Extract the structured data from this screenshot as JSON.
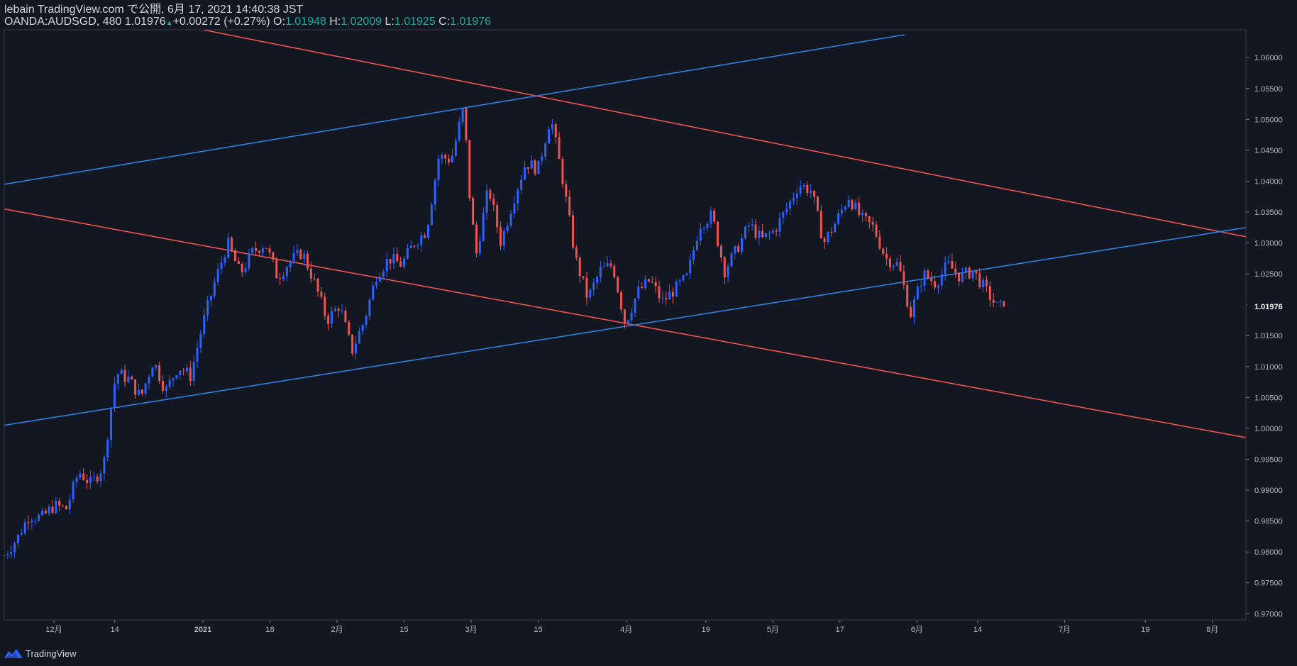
{
  "header": {
    "line1": "lebain TradingView.com で公開, 6月 17, 2021 14:40:38 JST",
    "symbol": "OANDA:AUDSGD, 480",
    "last": "1.01976",
    "change": "+0.00272 (+0.27%)",
    "o_label": "O:",
    "o_value": "1.01948",
    "h_label": "H:",
    "h_value": "1.02009",
    "l_label": "L:",
    "l_value": "1.01925",
    "c_label": "C:",
    "c_value": "1.01976"
  },
  "footer": {
    "brand": "TradingView"
  },
  "colors": {
    "background": "#131722",
    "up": "#2962ff",
    "down": "#ef5350",
    "blue_line": "#2f7fe0",
    "red_line": "#f0524f",
    "text": "#d1d4dc",
    "green": "#26a69a"
  },
  "chart_data": {
    "type": "candlestick",
    "symbol": "OANDA:AUDSGD",
    "interval": "480",
    "current_price": 1.01976,
    "ylim": [
      0.969,
      1.0645
    ],
    "y_ticks": [
      "1.06000",
      "1.05500",
      "1.05000",
      "1.04500",
      "1.04000",
      "1.03500",
      "1.03000",
      "1.02500",
      "1.02000",
      "1.01500",
      "1.01000",
      "1.00500",
      "1.00000",
      "0.99500",
      "0.99000",
      "0.98500",
      "0.98000",
      "0.97500",
      "0.97000"
    ],
    "x_ticks": [
      {
        "label": "12月",
        "t": 0.04
      },
      {
        "label": "14",
        "t": 0.089
      },
      {
        "label": "2021",
        "t": 0.16
      },
      {
        "label": "18",
        "t": 0.214
      },
      {
        "label": "2月",
        "t": 0.268
      },
      {
        "label": "15",
        "t": 0.322
      },
      {
        "label": "3月",
        "t": 0.376
      },
      {
        "label": "15",
        "t": 0.43
      },
      {
        "label": "4月",
        "t": 0.501
      },
      {
        "label": "19",
        "t": 0.565
      },
      {
        "label": "5月",
        "t": 0.619
      },
      {
        "label": "17",
        "t": 0.673
      },
      {
        "label": "6月",
        "t": 0.735
      },
      {
        "label": "14",
        "t": 0.784
      },
      {
        "label": "7月",
        "t": 0.854
      },
      {
        "label": "19",
        "t": 0.919
      },
      {
        "label": "8月",
        "t": 0.973
      }
    ],
    "series": [
      {
        "name": "close_path",
        "points": [
          [
            0.0,
            0.9795
          ],
          [
            0.01,
            0.982
          ],
          [
            0.02,
            0.986
          ],
          [
            0.03,
            0.9855
          ],
          [
            0.04,
            0.9875
          ],
          [
            0.05,
            0.987
          ],
          [
            0.06,
            0.993
          ],
          [
            0.07,
            0.991
          ],
          [
            0.08,
            0.994
          ],
          [
            0.085,
            1.002
          ],
          [
            0.09,
            1.009
          ],
          [
            0.1,
            1.008
          ],
          [
            0.11,
            1.005
          ],
          [
            0.12,
            1.011
          ],
          [
            0.13,
            1.006
          ],
          [
            0.14,
            1.01
          ],
          [
            0.15,
            1.0085
          ],
          [
            0.16,
            1.017
          ],
          [
            0.17,
            1.024
          ],
          [
            0.18,
            1.03
          ],
          [
            0.19,
            1.025
          ],
          [
            0.2,
            1.0285
          ],
          [
            0.21,
            1.03
          ],
          [
            0.22,
            1.0245
          ],
          [
            0.23,
            1.027
          ],
          [
            0.24,
            1.0285
          ],
          [
            0.25,
            1.0235
          ],
          [
            0.26,
            1.0175
          ],
          [
            0.27,
            1.02
          ],
          [
            0.28,
            1.0125
          ],
          [
            0.29,
            1.0175
          ],
          [
            0.3,
            1.025
          ],
          [
            0.31,
            1.0275
          ],
          [
            0.32,
            1.0265
          ],
          [
            0.33,
            1.03
          ],
          [
            0.34,
            1.032
          ],
          [
            0.35,
            1.044
          ],
          [
            0.36,
            1.0435
          ],
          [
            0.37,
            1.052
          ],
          [
            0.375,
            1.037
          ],
          [
            0.38,
            1.028
          ],
          [
            0.39,
            1.039
          ],
          [
            0.4,
            1.03
          ],
          [
            0.41,
            1.037
          ],
          [
            0.42,
            1.043
          ],
          [
            0.43,
            1.042
          ],
          [
            0.44,
            1.0505
          ],
          [
            0.45,
            1.04
          ],
          [
            0.46,
            1.0275
          ],
          [
            0.47,
            1.021
          ],
          [
            0.48,
            1.0255
          ],
          [
            0.49,
            1.0265
          ],
          [
            0.5,
            1.017
          ],
          [
            0.51,
            1.022
          ],
          [
            0.52,
            1.024
          ],
          [
            0.53,
            1.0205
          ],
          [
            0.54,
            1.0225
          ],
          [
            0.55,
            1.0245
          ],
          [
            0.56,
            1.033
          ],
          [
            0.57,
            1.0345
          ],
          [
            0.58,
            1.0255
          ],
          [
            0.59,
            1.029
          ],
          [
            0.6,
            1.033
          ],
          [
            0.61,
            1.0305
          ],
          [
            0.62,
            1.032
          ],
          [
            0.63,
            1.0355
          ],
          [
            0.64,
            1.0395
          ],
          [
            0.65,
            1.0385
          ],
          [
            0.66,
            1.03
          ],
          [
            0.67,
            1.0335
          ],
          [
            0.68,
            1.0375
          ],
          [
            0.69,
            1.034
          ],
          [
            0.7,
            1.0325
          ],
          [
            0.71,
            1.0275
          ],
          [
            0.72,
            1.0265
          ],
          [
            0.73,
            1.0185
          ],
          [
            0.74,
            1.025
          ],
          [
            0.75,
            1.0235
          ],
          [
            0.76,
            1.0265
          ],
          [
            0.77,
            1.0245
          ],
          [
            0.78,
            1.0255
          ],
          [
            0.79,
            1.0225
          ],
          [
            0.8,
            1.0195
          ],
          [
            0.805,
            1.0198
          ]
        ]
      }
    ],
    "trendlines": [
      {
        "color": "red",
        "from": [
          0.11,
          1.0665
        ],
        "to": [
          1.0,
          1.031
        ]
      },
      {
        "color": "red",
        "from": [
          0.0,
          1.0355
        ],
        "to": [
          1.0,
          0.9985
        ]
      },
      {
        "color": "blue",
        "from": [
          0.0,
          1.0005
        ],
        "to": [
          1.0,
          1.0325
        ]
      },
      {
        "color": "blue",
        "from": [
          0.0,
          1.0395
        ],
        "to": [
          0.725,
          1.0637
        ]
      }
    ]
  }
}
